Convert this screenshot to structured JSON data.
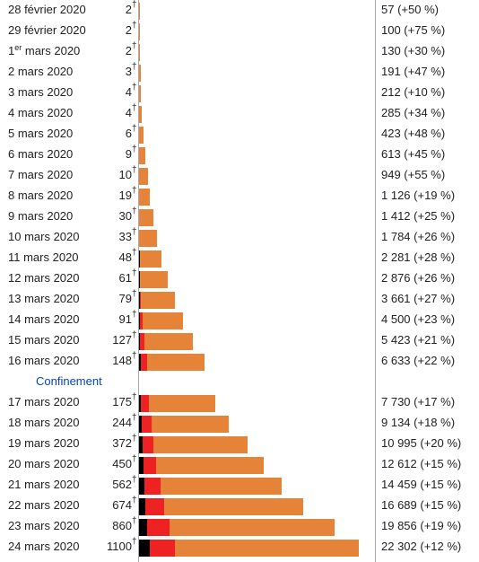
{
  "chart_data": {
    "type": "bar",
    "stacked": true,
    "orientation": "horizontal",
    "colors": {
      "deaths": "#000000",
      "recoveries": "#ee2222",
      "active": "#e58439"
    },
    "death_marker": "†",
    "annotation": {
      "label": "Confinement",
      "after_category": "16 mars 2020"
    },
    "rows": [
      {
        "date": "28 février 2020",
        "deaths": "2",
        "cases": "57 (+50 %)",
        "total": 57,
        "d": 2,
        "r": 0
      },
      {
        "date": "29 février 2020",
        "deaths": "2",
        "cases": "100 (+75 %)",
        "total": 100,
        "d": 2,
        "r": 0
      },
      {
        "date": "1",
        "date_sup": "er",
        "date_rest": " mars 2020",
        "deaths": "2",
        "cases": "130 (+30 %)",
        "total": 130,
        "d": 2,
        "r": 0
      },
      {
        "date": "2 mars 2020",
        "deaths": "3",
        "cases": "191 (+47 %)",
        "total": 191,
        "d": 3,
        "r": 0
      },
      {
        "date": "3 mars 2020",
        "deaths": "4",
        "cases": "212 (+10 %)",
        "total": 212,
        "d": 4,
        "r": 0
      },
      {
        "date": "4 mars 2020",
        "deaths": "4",
        "cases": "285 (+34 %)",
        "total": 285,
        "d": 4,
        "r": 0
      },
      {
        "date": "5 mars 2020",
        "deaths": "6",
        "cases": "423 (+48 %)",
        "total": 423,
        "d": 6,
        "r": 0
      },
      {
        "date": "6 mars 2020",
        "deaths": "9",
        "cases": "613 (+45 %)",
        "total": 613,
        "d": 9,
        "r": 0
      },
      {
        "date": "7 mars 2020",
        "deaths": "10",
        "cases": "949 (+55 %)",
        "total": 949,
        "d": 10,
        "r": 0
      },
      {
        "date": "8 mars 2020",
        "deaths": "19",
        "cases": "1 126 (+19 %)",
        "total": 1126,
        "d": 19,
        "r": 0
      },
      {
        "date": "9 mars 2020",
        "deaths": "30",
        "cases": "1 412 (+25 %)",
        "total": 1412,
        "d": 30,
        "r": 0
      },
      {
        "date": "10 mars 2020",
        "deaths": "33",
        "cases": "1 784 (+26 %)",
        "total": 1784,
        "d": 33,
        "r": 0
      },
      {
        "date": "11 mars 2020",
        "deaths": "48",
        "cases": "2 281 (+28 %)",
        "total": 2281,
        "d": 48,
        "r": 0
      },
      {
        "date": "12 mars 2020",
        "deaths": "61",
        "cases": "2 876 (+26 %)",
        "total": 2876,
        "d": 61,
        "r": 60
      },
      {
        "date": "13 mars 2020",
        "deaths": "79",
        "cases": "3 661 (+27 %)",
        "total": 3661,
        "d": 79,
        "r": 60
      },
      {
        "date": "14 mars 2020",
        "deaths": "91",
        "cases": "4 500 (+23 %)",
        "total": 4500,
        "d": 91,
        "r": 300
      },
      {
        "date": "15 mars 2020",
        "deaths": "127",
        "cases": "5 423 (+21 %)",
        "total": 5423,
        "d": 127,
        "r": 400
      },
      {
        "date": "16 mars 2020",
        "deaths": "148",
        "cases": "6 633 (+22 %)",
        "total": 6633,
        "d": 148,
        "r": 650
      },
      {
        "date": "17 mars 2020",
        "deaths": "175",
        "cases": "7 730 (+17 %)",
        "total": 7730,
        "d": 175,
        "r": 850
      },
      {
        "date": "18 mars 2020",
        "deaths": "244",
        "cases": "9 134 (+18 %)",
        "total": 9134,
        "d": 244,
        "r": 1000
      },
      {
        "date": "19 mars 2020",
        "deaths": "372",
        "cases": "10 995 (+20 %)",
        "total": 10995,
        "d": 372,
        "r": 1100
      },
      {
        "date": "20 mars 2020",
        "deaths": "450",
        "cases": "12 612 (+15 %)",
        "total": 12612,
        "d": 450,
        "r": 1300
      },
      {
        "date": "21 mars 2020",
        "deaths": "562",
        "cases": "14 459 (+15 %)",
        "total": 14459,
        "d": 562,
        "r": 1600
      },
      {
        "date": "22 mars 2020",
        "deaths": "674",
        "cases": "16 689 (+15 %)",
        "total": 16689,
        "d": 674,
        "r": 1900
      },
      {
        "date": "23 mars 2020",
        "deaths": "860",
        "cases": "19 856 (+19 %)",
        "total": 19856,
        "d": 860,
        "r": 2200
      },
      {
        "date": "24 mars 2020",
        "deaths": "1100",
        "cases": "22 302 (+12 %)",
        "total": 22302,
        "d": 1100,
        "r": 2500
      }
    ]
  }
}
